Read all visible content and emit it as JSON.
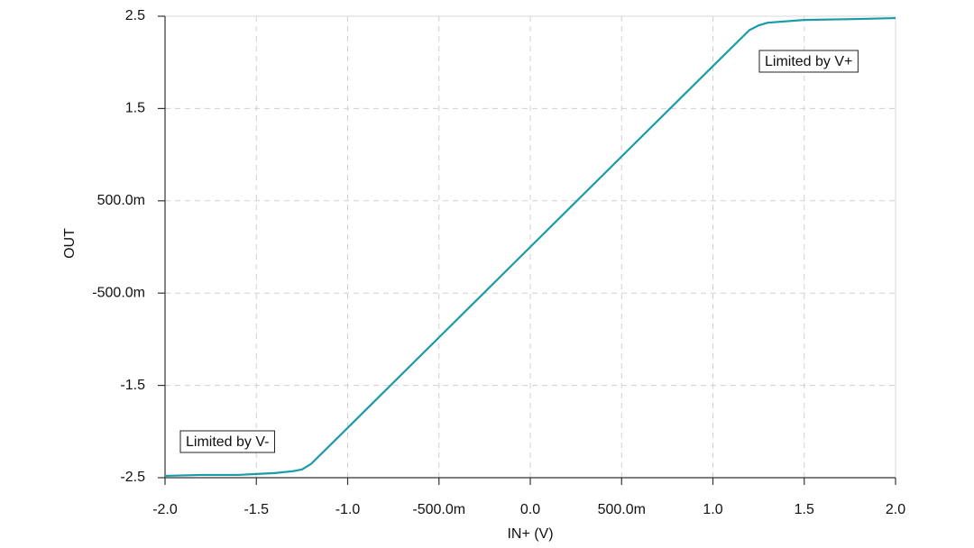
{
  "chart_data": {
    "type": "line",
    "x_label": "IN+ (V)",
    "y_label": "OUT",
    "x": [
      -2.0,
      -1.8,
      -1.6,
      -1.5,
      -1.4,
      -1.3,
      -1.25,
      -1.2,
      -1.0,
      -0.5,
      0,
      0.5,
      1.0,
      1.2,
      1.25,
      1.3,
      1.5,
      1.8,
      2.0
    ],
    "series": [
      {
        "color": "#1a9ba8",
        "values": [
          -2.48,
          -2.47,
          -2.47,
          -2.46,
          -2.45,
          -2.43,
          -2.41,
          -2.35,
          -1.96,
          -0.98,
          0,
          0.98,
          1.96,
          2.35,
          2.4,
          2.43,
          2.46,
          2.47,
          2.48
        ]
      }
    ],
    "xlim": [
      -2.0,
      2.0
    ],
    "xticks": [
      {
        "value": -2.0,
        "label": "-2.0"
      },
      -1.5,
      {
        "value": -1.0,
        "label": "-1.0"
      },
      {
        "value": -0.5,
        "label": "-500.0m"
      },
      {
        "value": 0,
        "label": "0.0"
      },
      {
        "value": 0.5,
        "label": "500.0m"
      },
      {
        "value": 1.0,
        "label": "1.0"
      },
      1.5,
      {
        "value": 2.0,
        "label": "2.0"
      }
    ],
    "ylim": [
      -2.5,
      2.5
    ],
    "yticks": [
      -2.5,
      -1.5,
      {
        "value": -0.5,
        "label": "-500.0m"
      },
      {
        "value": 0.5,
        "label": "500.0m"
      },
      1.5,
      2.5
    ],
    "grid": true,
    "annotations": [
      {
        "text": "Limited by V+"
      },
      {
        "text": "Limited by V-"
      }
    ]
  }
}
